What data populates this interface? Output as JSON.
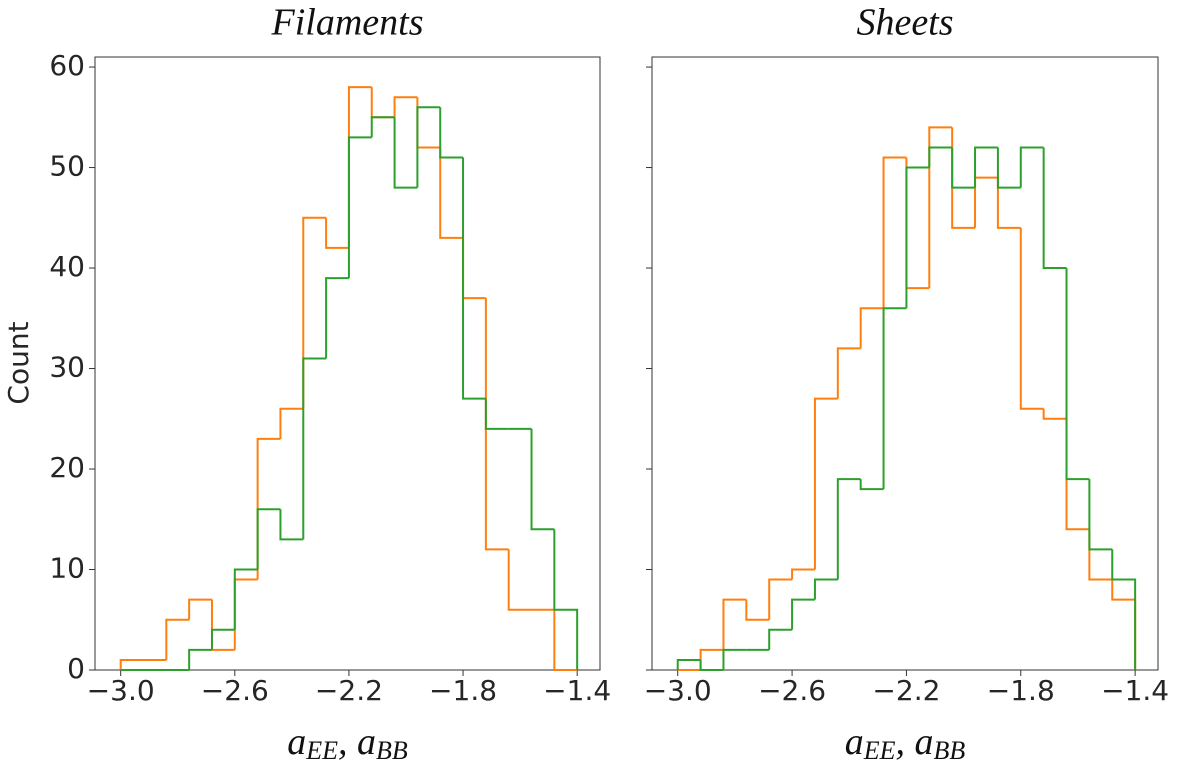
{
  "chart_data": [
    {
      "type": "histogram",
      "title": "Filaments",
      "xlabel": [
        "a",
        "EE",
        ", a",
        "BB"
      ],
      "ylabel": "Count",
      "bins": [
        -3.0,
        -2.92,
        -2.84,
        -2.76,
        -2.68,
        -2.6,
        -2.52,
        -2.44,
        -2.36,
        -2.28,
        -2.2,
        -2.12,
        -2.04,
        -1.96,
        -1.88,
        -1.8,
        -1.72,
        -1.64,
        -1.56,
        -1.48,
        -1.4
      ],
      "series": [
        {
          "color": "#ff7f0e",
          "values": [
            1,
            1,
            5,
            7,
            2,
            9,
            23,
            26,
            45,
            42,
            58,
            55,
            57,
            52,
            43,
            37,
            12,
            6,
            6,
            0
          ]
        },
        {
          "color": "#2ca02c",
          "values": [
            0,
            0,
            0,
            2,
            4,
            10,
            16,
            13,
            31,
            39,
            53,
            55,
            48,
            56,
            51,
            27,
            24,
            24,
            14,
            6
          ]
        }
      ],
      "xlim": [
        -3.09,
        -1.32
      ],
      "ylim": [
        0,
        61
      ],
      "xticks": [
        {
          "value": -3.0,
          "label": "−3.0"
        },
        {
          "value": -2.6,
          "label": "−2.6"
        },
        {
          "value": -2.2,
          "label": "−2.2"
        },
        {
          "value": -1.8,
          "label": "−1.8"
        },
        {
          "value": -1.4,
          "label": "−1.4"
        }
      ],
      "yticks": [
        0,
        10,
        20,
        30,
        40,
        50,
        60
      ],
      "show_ytick_labels": true
    },
    {
      "type": "histogram",
      "title": "Sheets",
      "xlabel": [
        "a",
        "EE",
        ", a",
        "BB"
      ],
      "bins": [
        -3.0,
        -2.92,
        -2.84,
        -2.76,
        -2.68,
        -2.6,
        -2.52,
        -2.44,
        -2.36,
        -2.28,
        -2.2,
        -2.12,
        -2.04,
        -1.96,
        -1.88,
        -1.8,
        -1.72,
        -1.64,
        -1.56,
        -1.48,
        -1.4
      ],
      "series": [
        {
          "color": "#ff7f0e",
          "values": [
            0,
            2,
            7,
            5,
            9,
            10,
            27,
            32,
            36,
            51,
            38,
            54,
            44,
            49,
            44,
            26,
            25,
            14,
            9,
            7
          ]
        },
        {
          "color": "#2ca02c",
          "values": [
            1,
            0,
            2,
            2,
            4,
            7,
            9,
            19,
            18,
            36,
            50,
            52,
            48,
            52,
            48,
            52,
            40,
            19,
            12,
            9
          ]
        }
      ],
      "xlim": [
        -3.09,
        -1.32
      ],
      "ylim": [
        0,
        61
      ],
      "xticks": [
        {
          "value": -3.0,
          "label": "−3.0"
        },
        {
          "value": -2.6,
          "label": "−2.6"
        },
        {
          "value": -2.2,
          "label": "−2.2"
        },
        {
          "value": -1.8,
          "label": "−1.8"
        },
        {
          "value": -1.4,
          "label": "−1.4"
        }
      ],
      "yticks": [
        0,
        10,
        20,
        30,
        40,
        50,
        60
      ],
      "show_ytick_labels": false
    }
  ]
}
